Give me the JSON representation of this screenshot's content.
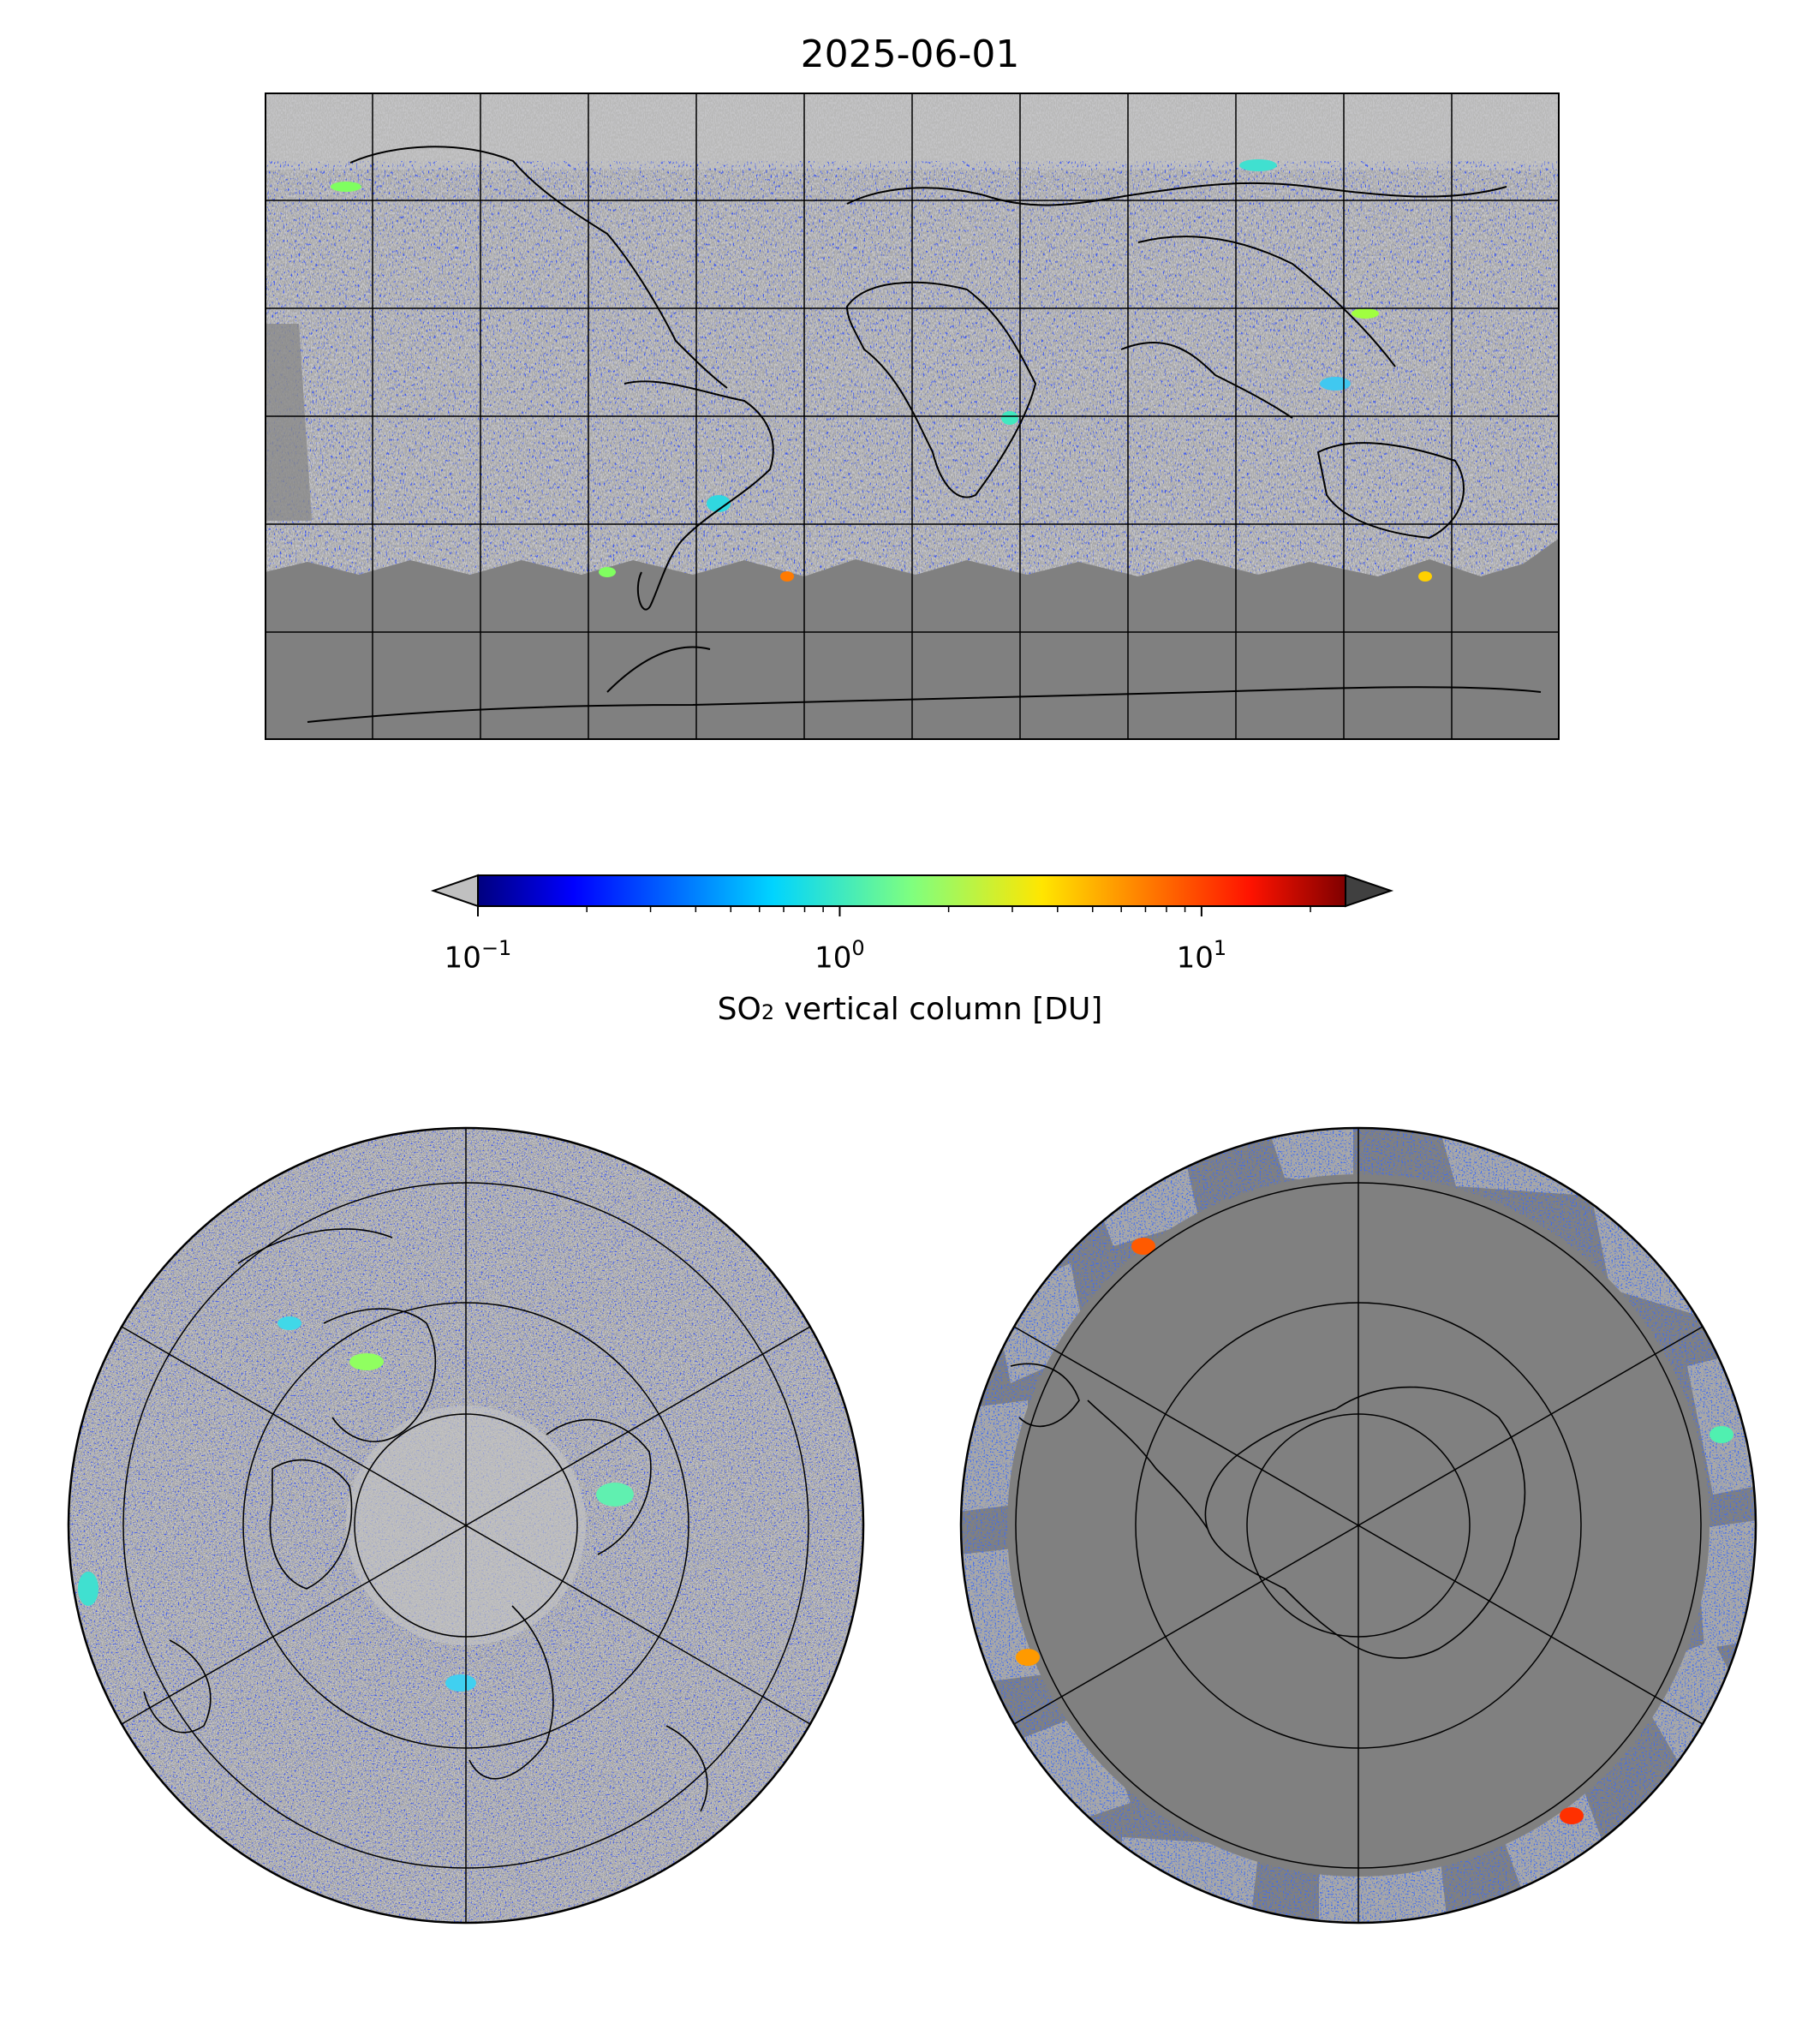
{
  "title": "2025-06-01",
  "colorbar": {
    "label_prefix": "SO",
    "label_subscript": "2",
    "label_suffix": " vertical column [DU]",
    "scale": "log",
    "min": 0.1,
    "max": 25,
    "ticks": [
      {
        "value": 0.1,
        "base": "10",
        "exponent": "−1"
      },
      {
        "value": 1,
        "base": "10",
        "exponent": "0"
      },
      {
        "value": 10,
        "base": "10",
        "exponent": "1"
      }
    ],
    "colormap": "jet",
    "under_color": "#c0c0c0",
    "over_color": "#404040",
    "extend": "both"
  },
  "colors": {
    "nodata": "#808080",
    "low": "#bdbdbd",
    "background": "#ffffff",
    "coastline": "#000000"
  },
  "maps": [
    {
      "name": "world",
      "projection": "plate-carree",
      "gridlines": true
    },
    {
      "name": "north-polar",
      "projection": "north-polar-stereographic",
      "gridlines": true
    },
    {
      "name": "south-polar",
      "projection": "south-polar-stereographic",
      "gridlines": true
    }
  ]
}
